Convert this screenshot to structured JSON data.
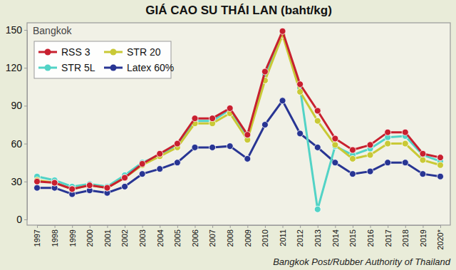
{
  "chart_data": {
    "type": "line",
    "title": "GIÁ CAO SU THÁI LAN (baht/kg)",
    "subtitle": "Bangkok",
    "source": "Bangkok Post/Rubber Authority of Thailand",
    "categories": [
      "1997",
      "1998",
      "1999",
      "2000",
      "2001",
      "2002",
      "2003",
      "2004",
      "2005",
      "2006",
      "2007",
      "2008",
      "2009",
      "2010",
      "2011",
      "2012",
      "2013",
      "2014",
      "2015",
      "2016",
      "2017",
      "2018",
      "2019",
      "2020*"
    ],
    "series": [
      {
        "name": "RSS 3",
        "color": "#c8202f",
        "marker": "circle",
        "values": [
          30,
          29,
          24,
          27,
          25,
          33,
          44,
          52,
          60,
          80,
          80,
          88,
          67,
          117,
          149,
          107,
          86,
          64,
          55,
          59,
          69,
          69,
          52,
          49
        ]
      },
      {
        "name": "STR 20",
        "color": "#c9c936",
        "marker": "circle",
        "values": [
          31,
          29,
          24,
          27,
          25,
          33,
          43,
          50,
          57,
          76,
          76,
          84,
          63,
          110,
          146,
          101,
          78,
          59,
          48,
          51,
          60,
          60,
          47,
          43
        ]
      },
      {
        "name": "STR 5L",
        "color": "#52d3c6",
        "marker": "circle",
        "values": [
          34,
          31,
          26,
          28,
          26,
          35,
          45,
          51,
          59,
          78,
          78,
          87,
          66,
          115,
          147,
          104,
          8,
          58,
          51,
          56,
          65,
          66,
          51,
          46
        ]
      },
      {
        "name": "Latex 60%",
        "color": "#283593",
        "marker": "circle",
        "values": [
          25,
          25,
          20,
          23,
          21,
          26,
          36,
          40,
          45,
          57,
          57,
          58,
          48,
          75,
          94,
          68,
          57,
          45,
          36,
          38,
          45,
          45,
          36,
          34
        ]
      }
    ],
    "ylim": [
      0,
      150
    ],
    "yticks": [
      0,
      30,
      60,
      90,
      120,
      150
    ],
    "grid": false,
    "legend": "upper left"
  }
}
